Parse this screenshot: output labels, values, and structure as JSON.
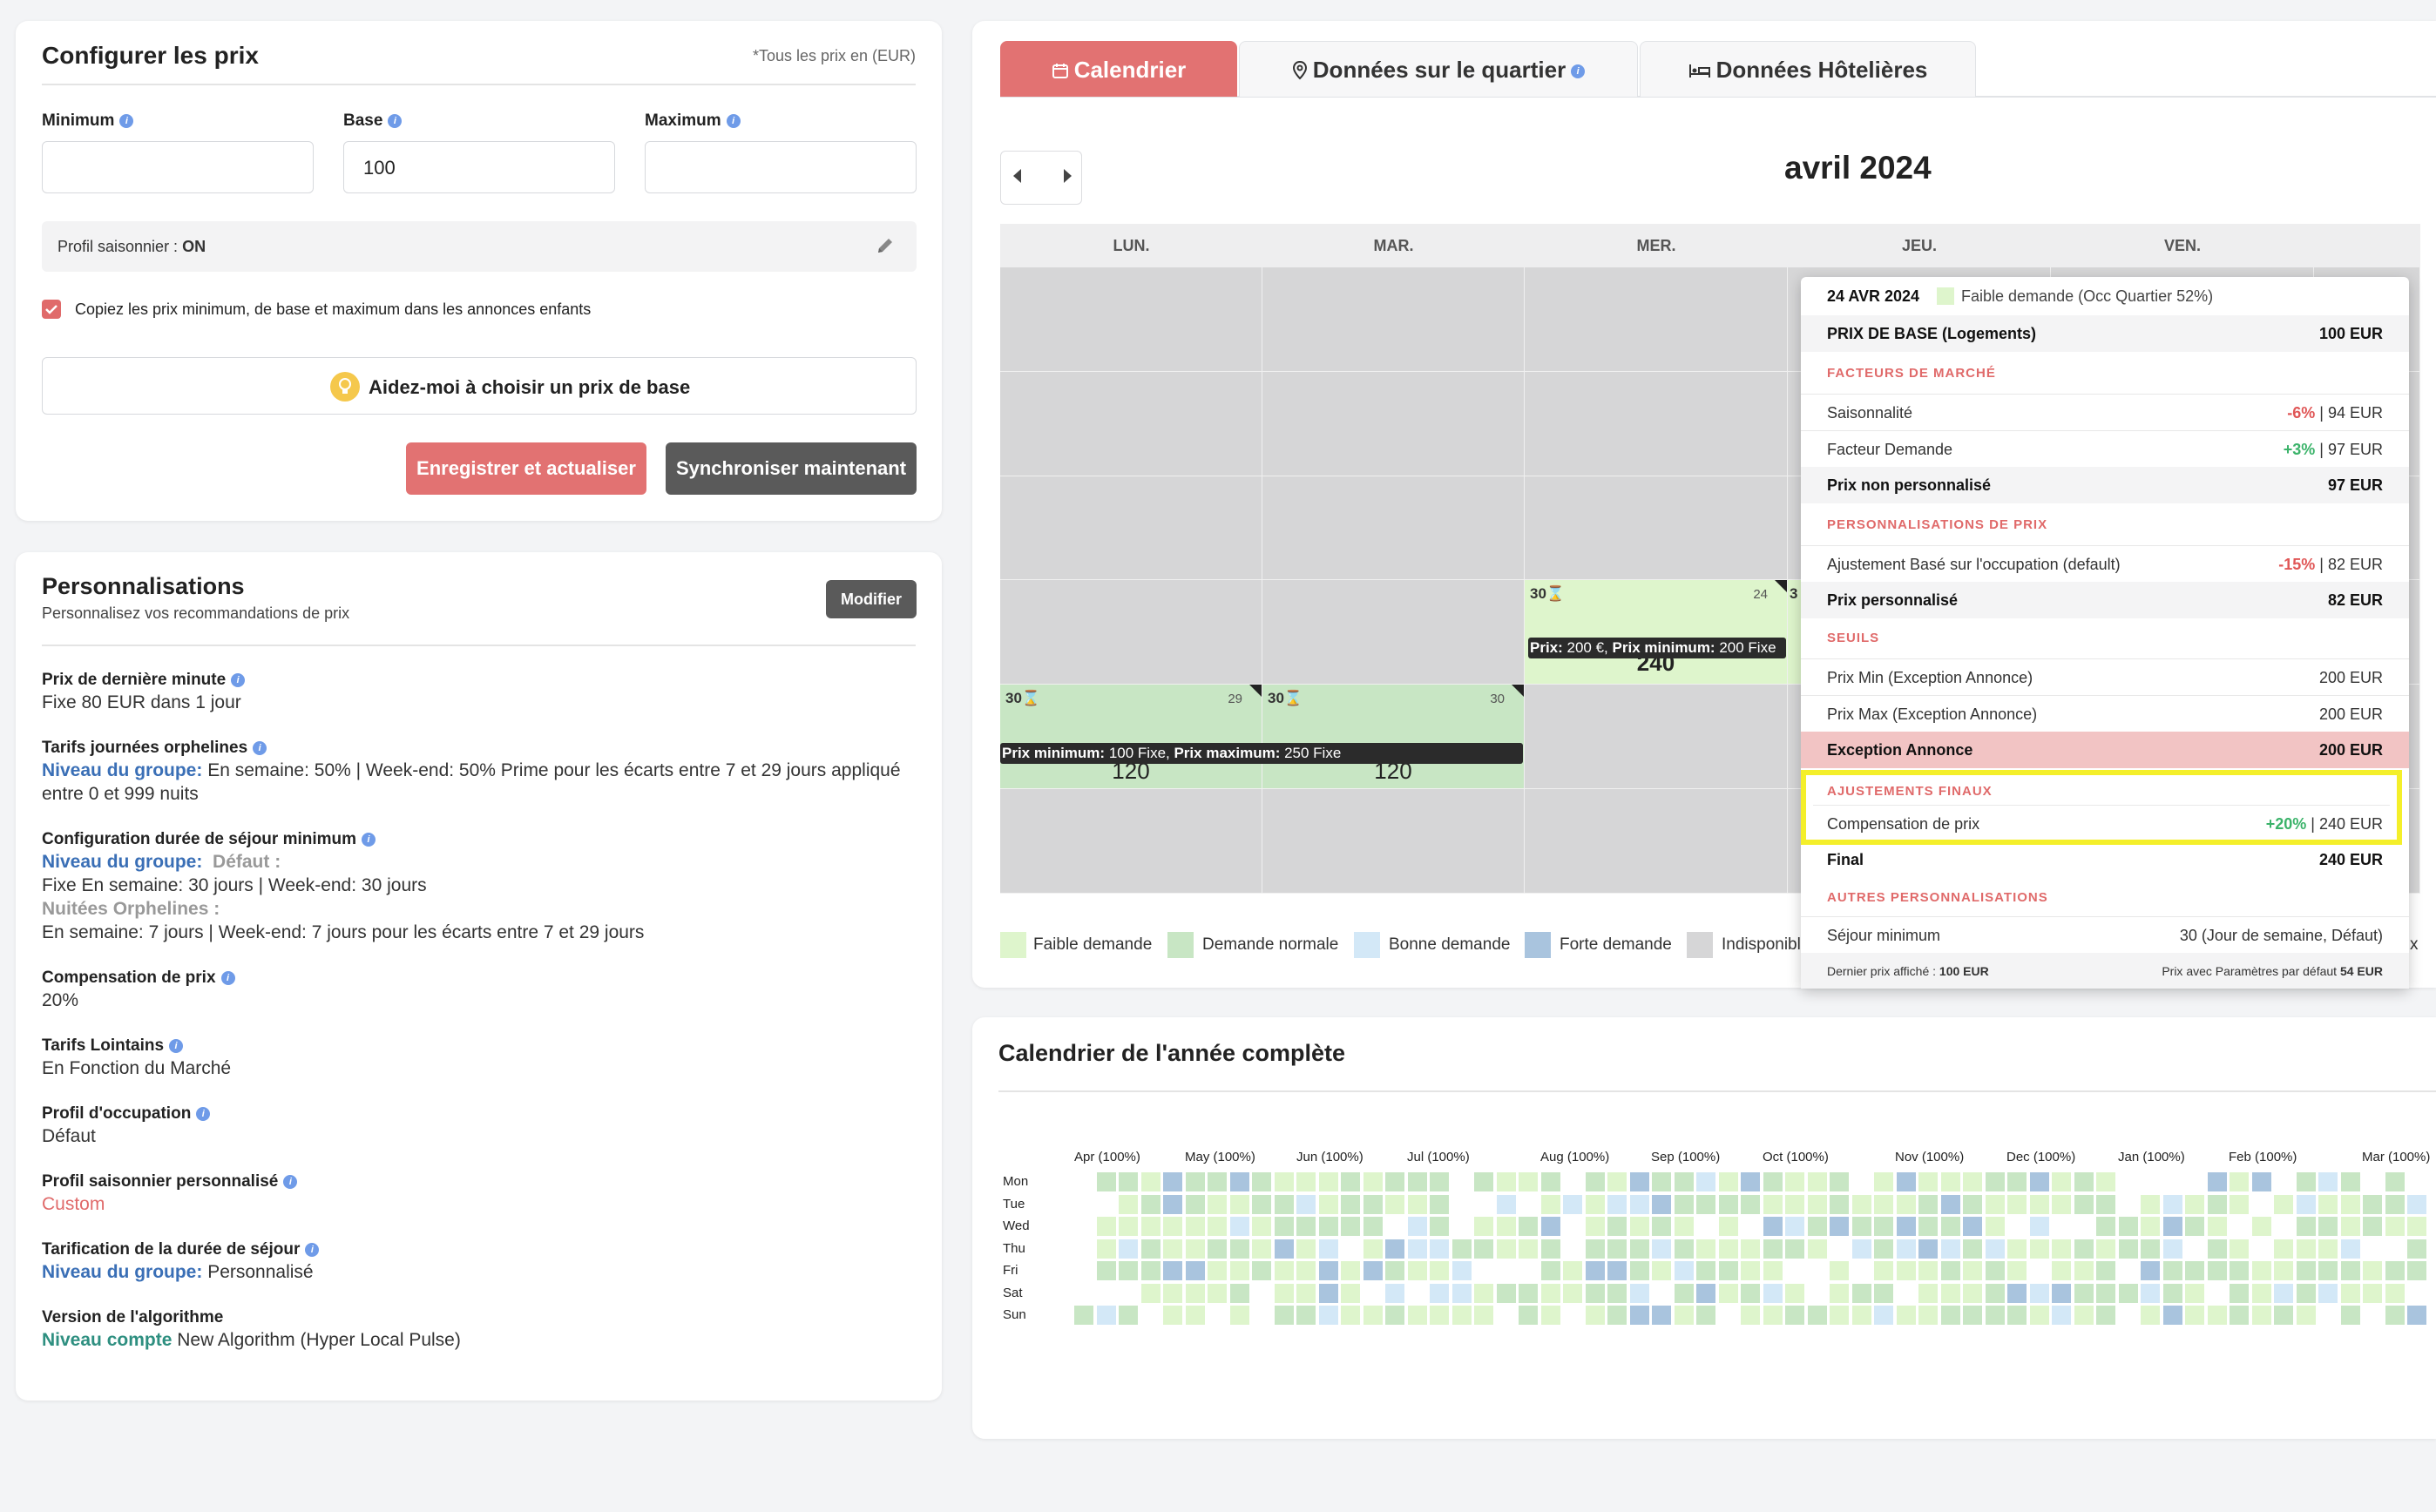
{
  "config": {
    "title": "Configurer les prix",
    "currency_note": "*Tous les prix en (EUR)",
    "fields": {
      "minimum_label": "Minimum",
      "base_label": "Base",
      "maximum_label": "Maximum",
      "minimum_value": "",
      "base_value": "100",
      "maximum_value": ""
    },
    "seasonal_profile_prefix": "Profil saisonnier : ",
    "seasonal_profile_value": "ON",
    "copy_checkbox_label": "Copiez les prix minimum, de base et maximum dans les annonces enfants",
    "copy_checked": true,
    "help_button": "Aidez-moi à choisir un prix de base",
    "save_button": "Enregistrer et actualiser",
    "sync_button": "Synchroniser maintenant"
  },
  "personalizations": {
    "title": "Personnalisations",
    "subtitle": "Personnalisez vos recommandations de prix",
    "edit_button": "Modifier",
    "items": {
      "last_minute_title": "Prix de dernière minute",
      "last_minute_value": "Fixe 80 EUR dans 1 jour",
      "orphan_title": "Tarifs journées orphelines",
      "orphan_level": "Niveau du groupe:",
      "orphan_line1": " En semaine: 50% | Week-end: 50% Prime pour les écarts entre 7 et 29 jours appliqué",
      "orphan_line2": "entre 0 et 999 nuits",
      "minstay_title": "Configuration durée de séjour minimum",
      "minstay_level": "Niveau du groupe:",
      "minstay_default_label": "Défaut :",
      "minstay_line1": "Fixe En semaine: 30 jours | Week-end: 30 jours",
      "minstay_orphan_label": "Nuitées Orphelines :",
      "minstay_line2": "En semaine: 7 jours | Week-end: 7 jours pour les écarts entre 7 et 29 jours",
      "compensation_title": "Compensation de prix",
      "compensation_value": "20%",
      "far_title": "Tarifs Lointains",
      "far_value": "En Fonction du Marché",
      "occupancy_title": "Profil d'occupation",
      "occupancy_value": "Défaut",
      "custom_profile_title": "Profil saisonnier personnalisé",
      "custom_profile_value": "Custom",
      "los_title": "Tarification de la durée de séjour",
      "los_level": "Niveau du groupe:",
      "los_value": " Personnalisé",
      "algo_title": "Version de l'algorithme",
      "algo_level": "Niveau compte",
      "algo_value": " New Algorithm (Hyper Local Pulse)"
    }
  },
  "tabs": [
    "Calendrier",
    "Données sur le quartier",
    "Données Hôtelières"
  ],
  "calendar": {
    "month": "avril 2024",
    "weekdays": [
      "LUN.",
      "MAR.",
      "MER.",
      "JEU.",
      "VEN."
    ],
    "cells": {
      "wed24_minstay": "30",
      "wed24_day": "24",
      "wed24_price": "240",
      "wed24_bar_prefix": "Prix:",
      "wed24_bar_mid": " 200 €, ",
      "wed24_bar_min_label": "Prix minimum:",
      "wed24_bar_min_value": " 200 Fixe",
      "thu25_minstay": "3",
      "mon29_minstay": "30",
      "mon29_day": "29",
      "mon29_price": "120",
      "tue30_minstay": "30",
      "tue30_day": "30",
      "tue30_price": "120",
      "bar2_min_label": "Prix minimum:",
      "bar2_min_value": " 100 Fixe, ",
      "bar2_max_label": "Prix maximum:",
      "bar2_max_value": " 250 Fixe"
    },
    "legend": [
      "Faible demande",
      "Demande normale",
      "Bonne demande",
      "Forte demande",
      "Indisponible"
    ],
    "legend_colors": [
      "#def5cc",
      "#c8e6c4",
      "#d3e8f7",
      "#a9c4de",
      "#d6d6d7"
    ]
  },
  "popover": {
    "date": "24 AVR 2024",
    "demand": "Faible demande (Occ Quartier 52%)",
    "base_label": "PRIX DE BASE (Logements)",
    "base_value": "100 EUR",
    "sec_market": "FACTEURS DE MARCHÉ",
    "seasonality_label": "Saisonnalité",
    "seasonality_pct": "-6%",
    "seasonality_value": " | 94 EUR",
    "demand_label": "Facteur Demande",
    "demand_pct": "+3%",
    "demand_value": " | 97 EUR",
    "unpersonalized_label": "Prix non personnalisé",
    "unpersonalized_value": "97 EUR",
    "sec_personal": "PERSONNALISATIONS DE PRIX",
    "occupancy_adj_label": "Ajustement Basé sur l'occupation (default)",
    "occupancy_adj_pct": "-15%",
    "occupancy_adj_value": " | 82 EUR",
    "personalized_label": "Prix personnalisé",
    "personalized_value": "82 EUR",
    "sec_thresholds": "SEUILS",
    "min_exc_label": "Prix Min (Exception Annonce)",
    "min_exc_value": "200 EUR",
    "max_exc_label": "Prix Max (Exception Annonce)",
    "max_exc_value": "200 EUR",
    "exception_label": "Exception Annonce",
    "exception_value": "200 EUR",
    "sec_final": "AJUSTEMENTS FINAUX",
    "compensation_label": "Compensation de prix",
    "compensation_pct": "+20%",
    "compensation_value": " | 240 EUR",
    "final_label": "Final",
    "final_value": "240 EUR",
    "sec_other": "AUTRES PERSONNALISATIONS",
    "minstay_label": "Séjour minimum",
    "minstay_value": "30 (Jour de semaine, Défaut)",
    "last_price_label": "Dernier prix affiché : ",
    "last_price_value": "100 EUR",
    "default_params_label": "Prix avec Paramètres par défaut ",
    "default_params_value": "54 EUR"
  },
  "year_calendar": {
    "title": "Calendrier de l'année complète",
    "months": [
      "Apr (100%)",
      "May (100%)",
      "Jun (100%)",
      "Jul (100%)",
      "Aug (100%)",
      "Sep (100%)",
      "Oct (100%)",
      "Nov (100%)",
      "Dec (100%)",
      "Jan (100%)",
      "Feb (100%)",
      "Mar (100%)"
    ],
    "days": [
      "Mon",
      "Tue",
      "Wed",
      "Thu",
      "Fri",
      "Sat",
      "Sun"
    ],
    "level_colors": [
      "#ffffff",
      "#def5cc",
      "#c8e6c4",
      "#d3e8f7",
      "#a9c4de"
    ]
  },
  "truncated_legend_tail": "x"
}
